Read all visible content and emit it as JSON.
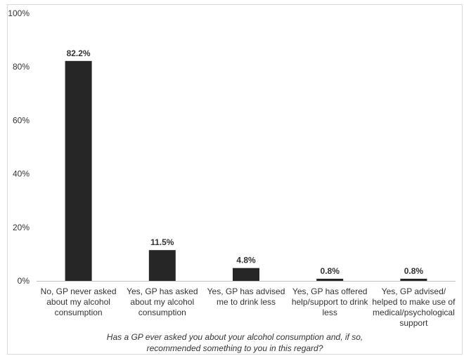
{
  "chart_data": {
    "type": "bar",
    "categories": [
      "No, GP never asked about my alcohol consumption",
      "Yes, GP has asked about my alcohol consumption",
      "Yes, GP has advised me to drink less",
      "Yes, GP has offered help/support to drink less",
      "Yes, GP advised/ helped to make use of medical/psychological support"
    ],
    "category_lines": [
      [
        "No, GP never asked",
        "about my alcohol",
        "consumption"
      ],
      [
        "Yes, GP has asked",
        "about my alcohol",
        "consumption"
      ],
      [
        "Yes, GP has advised",
        "me to drink less"
      ],
      [
        "Yes, GP has offered",
        "help/support to drink",
        "less"
      ],
      [
        "Yes, GP advised/",
        "helped to make use of",
        "medical/psychological",
        "support"
      ]
    ],
    "values": [
      82.2,
      11.5,
      4.8,
      0.8,
      0.8
    ],
    "data_labels": [
      "82.2%",
      "11.5%",
      "4.8%",
      "0.8%",
      "0.8%"
    ],
    "ylim": [
      0,
      100
    ],
    "yticks": [
      0,
      20,
      40,
      60,
      80,
      100
    ],
    "ytick_labels": [
      "0%",
      "20%",
      "40%",
      "60%",
      "80%",
      "100%"
    ],
    "xlabel_lines": [
      "Has a GP ever asked you about your alcohol consumption and, if so,",
      "recommended something to you in this regard?"
    ],
    "grid": false,
    "bar_color": "#262626"
  }
}
